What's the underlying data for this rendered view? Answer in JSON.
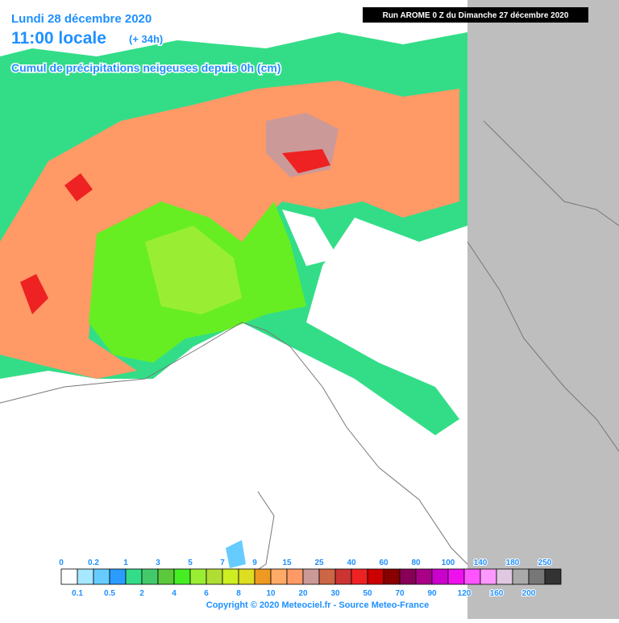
{
  "header": {
    "date": "Lundi 28 décembre 2020",
    "time": "11:00 locale",
    "lead": "(+ 34h)",
    "subtitle": "Cumul de précipitations neigeuses depuis 0h (cm)",
    "run": "Run AROME 0 Z du Dimanche 27 décembre 2020"
  },
  "legend": {
    "boundaries": [
      0,
      0.1,
      0.2,
      0.5,
      1,
      2,
      3,
      4,
      5,
      6,
      7,
      8,
      9,
      10,
      15,
      20,
      25,
      30,
      40,
      50,
      60,
      70,
      80,
      90,
      100,
      120,
      140,
      160,
      180,
      200,
      250
    ],
    "colors": [
      "#ffffff",
      "#a6e8ff",
      "#66ccff",
      "#2a9cff",
      "#33dd88",
      "#44c96a",
      "#5cc83c",
      "#44ee22",
      "#99ee33",
      "#b0dd33",
      "#ccee22",
      "#dddd22",
      "#ee9922",
      "#ffaa66",
      "#ff9966",
      "#cc9999",
      "#cc6644",
      "#cc3333",
      "#ee2222",
      "#cc0000",
      "#880000",
      "#880055",
      "#aa0088",
      "#cc00cc",
      "#ee11ee",
      "#ff55ff",
      "#ff99ff",
      "#e0c8e0",
      "#aaaaaa",
      "#777777",
      "#333333"
    ]
  },
  "footer": {
    "copyright": "Copyright © 2020 Meteociel.fr - Source Meteo-France"
  }
}
